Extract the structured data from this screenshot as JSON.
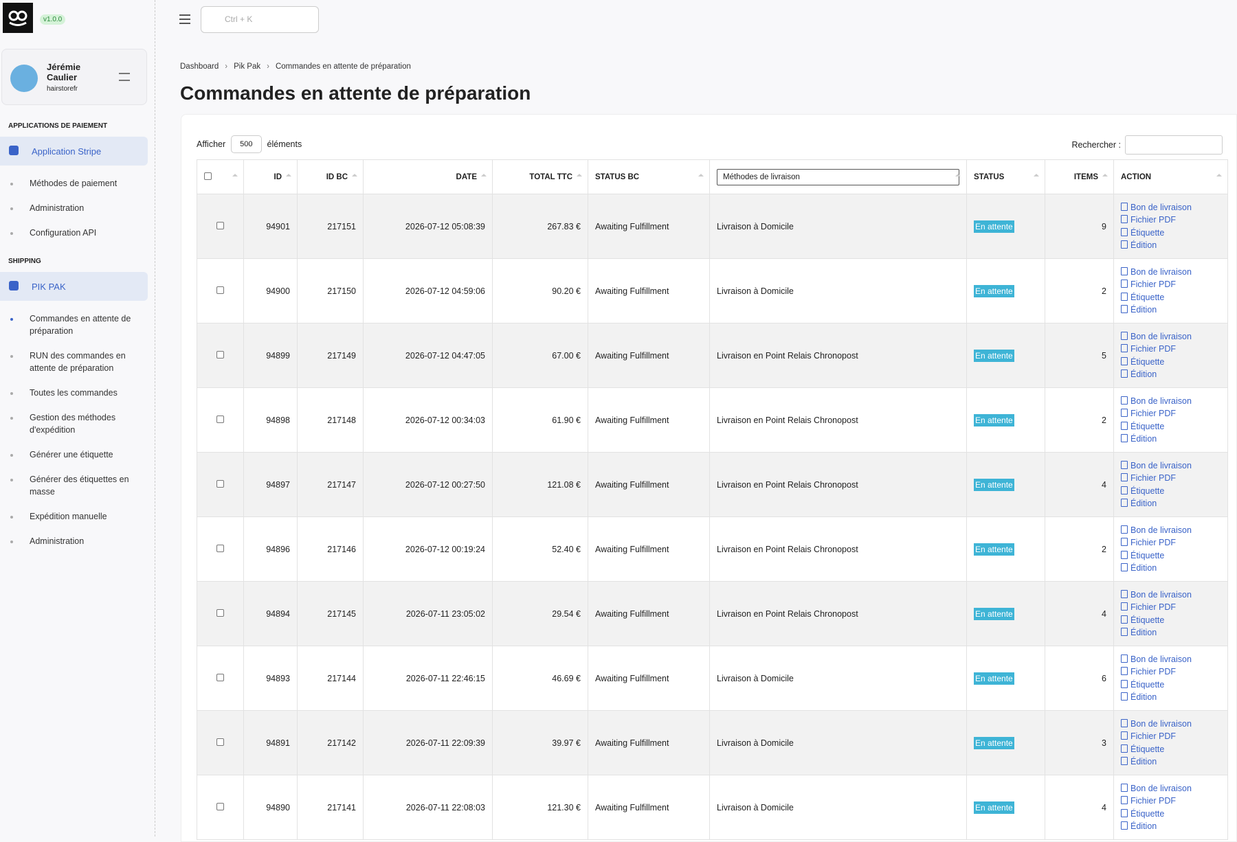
{
  "app": {
    "version": "v1.0.0",
    "search_placeholder": "Ctrl + K"
  },
  "user": {
    "name": "Jérémie Caulier",
    "store": "hairstorefr"
  },
  "sidebar": [
    {
      "heading": "APPLICATIONS DE PAIEMENT",
      "app": "Application Stripe",
      "items": [
        "Méthodes de paiement",
        "Administration",
        "Configuration API"
      ]
    },
    {
      "heading": "SHIPPING",
      "app": "PIK PAK",
      "items": [
        "Commandes en attente de préparation",
        "RUN des commandes en attente de préparation",
        "Toutes les commandes",
        "Gestion des méthodes d'expédition",
        "Générer une étiquette",
        "Générer des étiquettes en masse",
        "Expédition manuelle",
        "Administration"
      ]
    }
  ],
  "breadcrumb": [
    "Dashboard",
    "Pik Pak",
    "Commandes en attente de préparation"
  ],
  "title": "Commandes en attente de préparation",
  "controls": {
    "show": "Afficher",
    "page_size": "500",
    "elements": "éléments",
    "search": "Rechercher :"
  },
  "table": {
    "columns": [
      "ID",
      "ID BC",
      "DATE",
      "TOTAL TTC",
      "STATUS BC",
      "Méthodes de livraison",
      "STATUS",
      "ITEMS",
      "ACTION"
    ],
    "actions": [
      "Bon de livraison",
      "Fichier PDF",
      "Étiquette",
      "Édition"
    ],
    "rows": [
      [
        "94901",
        "217151",
        "2026-07-12 05:08:39",
        "267.83 €",
        "Awaiting Fulfillment",
        "Livraison à Domicile",
        "En attente",
        "9"
      ],
      [
        "94900",
        "217150",
        "2026-07-12 04:59:06",
        "90.20 €",
        "Awaiting Fulfillment",
        "Livraison à Domicile",
        "En attente",
        "2"
      ],
      [
        "94899",
        "217149",
        "2026-07-12 04:47:05",
        "67.00 €",
        "Awaiting Fulfillment",
        "Livraison en Point Relais Chronopost",
        "En attente",
        "5"
      ],
      [
        "94898",
        "217148",
        "2026-07-12 00:34:03",
        "61.90 €",
        "Awaiting Fulfillment",
        "Livraison en Point Relais Chronopost",
        "En attente",
        "2"
      ],
      [
        "94897",
        "217147",
        "2026-07-12 00:27:50",
        "121.08 €",
        "Awaiting Fulfillment",
        "Livraison en Point Relais Chronopost",
        "En attente",
        "4"
      ],
      [
        "94896",
        "217146",
        "2026-07-12 00:19:24",
        "52.40 €",
        "Awaiting Fulfillment",
        "Livraison en Point Relais Chronopost",
        "En attente",
        "2"
      ],
      [
        "94894",
        "217145",
        "2026-07-11 23:05:02",
        "29.54 €",
        "Awaiting Fulfillment",
        "Livraison en Point Relais Chronopost",
        "En attente",
        "4"
      ],
      [
        "94893",
        "217144",
        "2026-07-11 22:46:15",
        "46.69 €",
        "Awaiting Fulfillment",
        "Livraison à Domicile",
        "En attente",
        "6"
      ],
      [
        "94891",
        "217142",
        "2026-07-11 22:09:39",
        "39.97 €",
        "Awaiting Fulfillment",
        "Livraison à Domicile",
        "En attente",
        "3"
      ],
      [
        "94890",
        "217141",
        "2026-07-11 22:08:03",
        "121.30 €",
        "Awaiting Fulfillment",
        "Livraison à Domicile",
        "En attente",
        "4"
      ]
    ]
  }
}
